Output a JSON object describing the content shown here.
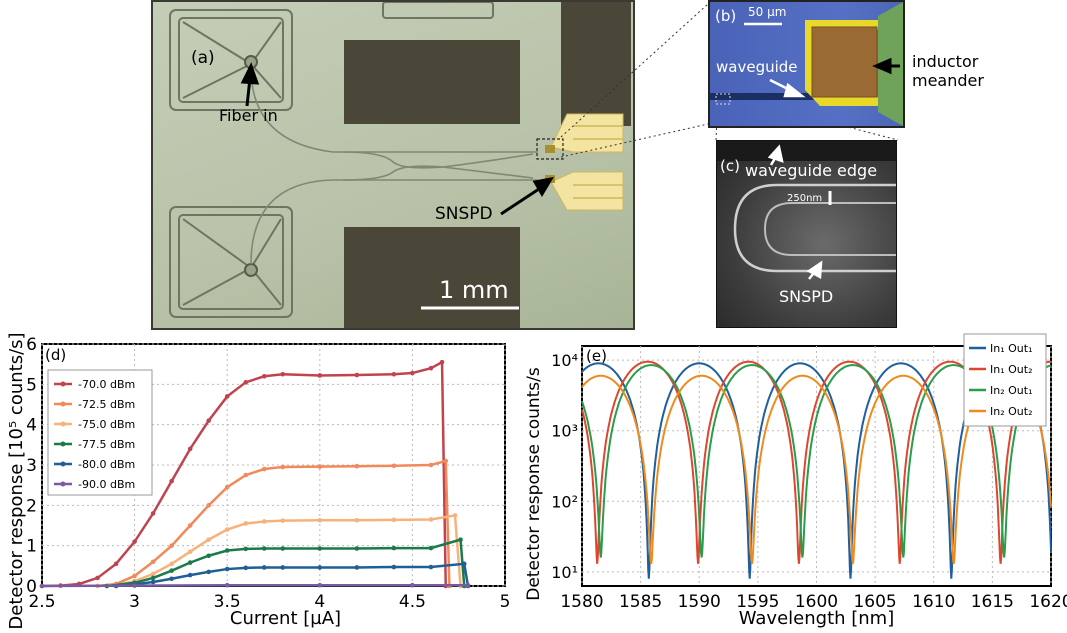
{
  "figure": {
    "panel_a": {
      "label": "(a)",
      "fiber_label": "Fiber in",
      "snspd_label": "SNSPD",
      "scale_label": "1 mm"
    },
    "panel_b": {
      "label": "(b)",
      "scale_label": "50 µm",
      "waveguide_label": "waveguide",
      "inductor_label_1": "inductor",
      "inductor_label_2": "meander"
    },
    "panel_c": {
      "label": "(c)",
      "edge_label": "waveguide edge",
      "width_label": "250nm",
      "snspd_label": "SNSPD"
    }
  },
  "chart_data": [
    {
      "type": "line",
      "panel_label": "(d)",
      "xlabel": "Current [µA]",
      "ylabel": "Detector response [10⁵ counts/s]",
      "xlim": [
        2.5,
        5.0
      ],
      "ylim": [
        0,
        6
      ],
      "xticks": [
        "2.5",
        "3",
        "3.5",
        "4",
        "4.5",
        "5"
      ],
      "yticks": [
        "0",
        "1",
        "2",
        "3",
        "4",
        "5",
        "6"
      ],
      "grid": true,
      "legend_position": "upper-left",
      "series": [
        {
          "name": "-70.0 dBm",
          "color": "#c0444f",
          "marker": true,
          "x": [
            2.5,
            2.6,
            2.7,
            2.8,
            2.9,
            3.0,
            3.1,
            3.2,
            3.3,
            3.4,
            3.5,
            3.6,
            3.7,
            3.8,
            4.0,
            4.2,
            4.4,
            4.5,
            4.6,
            4.66,
            4.68
          ],
          "y": [
            0,
            0.01,
            0.05,
            0.2,
            0.55,
            1.1,
            1.8,
            2.6,
            3.4,
            4.1,
            4.7,
            5.05,
            5.2,
            5.25,
            5.22,
            5.23,
            5.25,
            5.28,
            5.4,
            5.55,
            0
          ]
        },
        {
          "name": "-72.5 dBm",
          "color": "#f2895a",
          "marker": true,
          "x": [
            2.8,
            2.9,
            3.0,
            3.1,
            3.2,
            3.3,
            3.4,
            3.5,
            3.6,
            3.7,
            3.8,
            4.0,
            4.2,
            4.4,
            4.6,
            4.68,
            4.7
          ],
          "y": [
            0,
            0.05,
            0.25,
            0.6,
            1.0,
            1.5,
            2.0,
            2.45,
            2.75,
            2.9,
            2.95,
            2.96,
            2.97,
            2.98,
            3.0,
            3.1,
            0
          ]
        },
        {
          "name": "-75.0 dBm",
          "color": "#f7b27b",
          "marker": true,
          "x": [
            2.8,
            2.9,
            3.0,
            3.1,
            3.2,
            3.3,
            3.4,
            3.5,
            3.6,
            3.7,
            3.8,
            4.0,
            4.2,
            4.4,
            4.6,
            4.73,
            4.76
          ],
          "y": [
            0,
            0.02,
            0.12,
            0.3,
            0.55,
            0.85,
            1.15,
            1.4,
            1.55,
            1.6,
            1.62,
            1.63,
            1.63,
            1.64,
            1.65,
            1.75,
            0
          ]
        },
        {
          "name": "-77.5 dBm",
          "color": "#1a7a4a",
          "marker": true,
          "x": [
            2.85,
            3.0,
            3.1,
            3.2,
            3.3,
            3.4,
            3.5,
            3.6,
            3.7,
            3.8,
            4.0,
            4.2,
            4.4,
            4.6,
            4.76,
            4.78
          ],
          "y": [
            0,
            0.08,
            0.2,
            0.38,
            0.58,
            0.75,
            0.88,
            0.92,
            0.93,
            0.93,
            0.93,
            0.93,
            0.94,
            0.94,
            1.15,
            0
          ]
        },
        {
          "name": "-80.0 dBm",
          "color": "#1f5f96",
          "marker": true,
          "x": [
            2.9,
            3.0,
            3.1,
            3.2,
            3.3,
            3.4,
            3.5,
            3.6,
            3.7,
            3.8,
            4.0,
            4.2,
            4.4,
            4.6,
            4.78,
            4.8
          ],
          "y": [
            0,
            0.04,
            0.1,
            0.18,
            0.27,
            0.35,
            0.42,
            0.45,
            0.46,
            0.46,
            0.46,
            0.46,
            0.47,
            0.47,
            0.55,
            0
          ]
        },
        {
          "name": "-90.0 dBm",
          "color": "#7a5aa3",
          "marker": true,
          "x": [
            2.5,
            3.0,
            3.5,
            4.0,
            4.5,
            4.8
          ],
          "y": [
            0,
            0.01,
            0.02,
            0.02,
            0.02,
            0.02
          ]
        }
      ]
    },
    {
      "type": "line",
      "panel_label": "(e)",
      "xlabel": "Wavelength [nm]",
      "ylabel": "Detector response  counts/s",
      "xlim": [
        1580,
        1620
      ],
      "ylim_log10": [
        0.8,
        4.2
      ],
      "yscale": "log",
      "xticks": [
        "1580",
        "1585",
        "1590",
        "1595",
        "1600",
        "1605",
        "1610",
        "1615",
        "1620"
      ],
      "yticks": [
        "10¹",
        "10²",
        "10³",
        "10⁴"
      ],
      "grid": true,
      "legend_position": "upper-right",
      "fringe_period_nm": 8.6,
      "series": [
        {
          "name": "In₁ Out₁",
          "color": "#1f5f9e",
          "max": 9000,
          "min": 8,
          "first_min_nm": 1585.7
        },
        {
          "name": "In₁ Out₂",
          "color": "#e0462f",
          "max": 9500,
          "min": 13,
          "first_min_nm": 1581.3
        },
        {
          "name": "In₂ Out₁",
          "color": "#2a9d4b",
          "max": 8500,
          "min": 16,
          "first_min_nm": 1581.6
        },
        {
          "name": "In₂ Out₂",
          "color": "#f08a1c",
          "max": 6000,
          "min": 13,
          "first_min_nm": 1585.9
        }
      ]
    }
  ]
}
